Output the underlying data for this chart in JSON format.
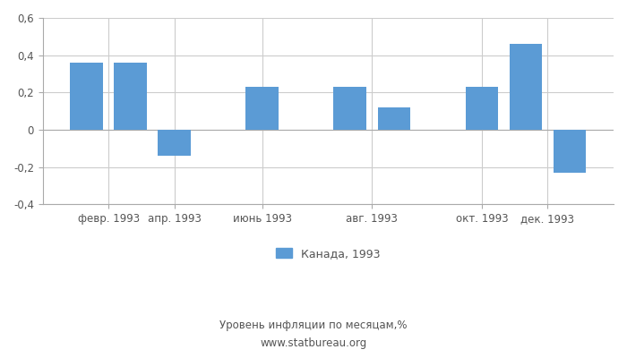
{
  "x_tick_labels": [
    "февр. 1993",
    "апр. 1993",
    "июнь 1993",
    "авг. 1993",
    "окт. 1993",
    "дек. 1993"
  ],
  "values": [
    0.36,
    0.36,
    -0.14,
    0.23,
    0.23,
    0.12,
    0.23,
    0.46,
    -0.23
  ],
  "bar_positions": [
    1,
    2,
    3,
    5,
    7,
    8,
    10,
    11,
    12
  ],
  "xtick_positions": [
    1.5,
    3,
    5,
    7.5,
    10,
    11.5
  ],
  "bar_color": "#5b9bd5",
  "ylim": [
    -0.4,
    0.6
  ],
  "yticks": [
    -0.4,
    -0.2,
    0.0,
    0.2,
    0.4,
    0.6
  ],
  "xlim": [
    0,
    13
  ],
  "legend_label": "Канада, 1993",
  "footer_line1": "Уровень инфляции по месяцам,%",
  "footer_line2": "www.statbureau.org",
  "bar_width": 0.75,
  "grid_color": "#cccccc",
  "bar_color_legend": "#5b9bd5",
  "spine_color": "#aaaaaa",
  "tick_label_color": "#555555",
  "footer_color": "#555555"
}
